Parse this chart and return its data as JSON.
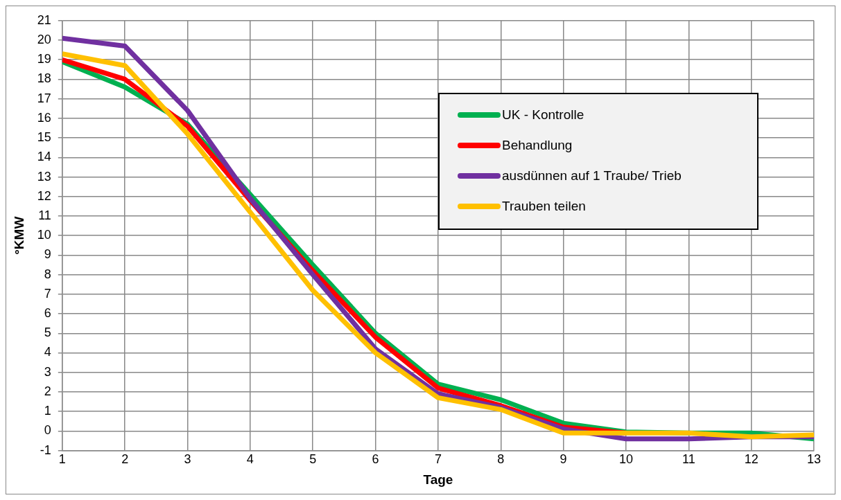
{
  "chart_data": {
    "type": "line",
    "xlabel": "Tage",
    "ylabel": "°KMW",
    "x": [
      1,
      2,
      3,
      4,
      5,
      6,
      7,
      8,
      9,
      10,
      11,
      12,
      13
    ],
    "xlim": [
      1,
      13
    ],
    "xticks": [
      1,
      2,
      3,
      4,
      5,
      6,
      7,
      8,
      9,
      10,
      11,
      12,
      13
    ],
    "ylim": [
      -1,
      21
    ],
    "yticks": [
      -1,
      0,
      1,
      2,
      3,
      4,
      5,
      6,
      7,
      8,
      9,
      10,
      11,
      12,
      13,
      14,
      15,
      16,
      17,
      18,
      19,
      20,
      21
    ],
    "grid": true,
    "legend": "top right",
    "marker": "none",
    "line_style": "solid",
    "series": [
      {
        "name": "UK - Kontrolle",
        "color": "#00b050",
        "values": [
          18.9,
          17.6,
          15.7,
          12.1,
          8.5,
          5.0,
          2.4,
          1.6,
          0.4,
          -0.05,
          -0.1,
          -0.1,
          -0.4
        ]
      },
      {
        "name": "Behandlung",
        "color": "#ff0000",
        "values": [
          19.0,
          18.0,
          15.6,
          11.8,
          8.2,
          4.8,
          2.2,
          1.3,
          0.2,
          -0.1,
          null,
          null,
          null
        ]
      },
      {
        "name": "ausdünnen auf 1 Traube/ Trieb",
        "color": "#7030a0",
        "values": [
          20.1,
          19.7,
          16.4,
          11.9,
          8.0,
          4.2,
          1.9,
          1.2,
          0.1,
          -0.4,
          -0.4,
          -0.3,
          -0.3
        ]
      },
      {
        "name": "Trauben teilen",
        "color": "#ffc000",
        "values": [
          19.3,
          18.7,
          15.2,
          11.2,
          7.2,
          4.0,
          1.7,
          1.1,
          -0.1,
          -0.1,
          -0.1,
          -0.3,
          -0.2
        ]
      }
    ]
  }
}
